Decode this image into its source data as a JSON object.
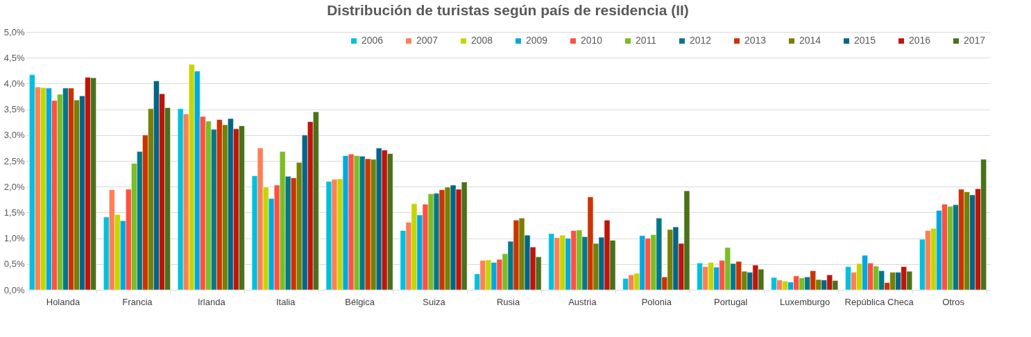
{
  "chart_data": {
    "type": "bar",
    "title": "Distribución de turistas según país de residencia (II)",
    "categories": [
      "Holanda",
      "Francia",
      "Irlanda",
      "Italia",
      "Bélgica",
      "Suiza",
      "Rusia",
      "Austria",
      "Polonia",
      "Portugal",
      "Luxemburgo",
      "República Checa",
      "Otros"
    ],
    "series": [
      {
        "name": "2006",
        "color": "#00c0de",
        "values": [
          4.17,
          1.41,
          3.51,
          2.21,
          2.1,
          1.15,
          0.31,
          1.09,
          0.22,
          0.52,
          0.24,
          0.45,
          0.98
        ]
      },
      {
        "name": "2007",
        "color": "#fe7f56",
        "values": [
          3.93,
          1.94,
          3.41,
          2.75,
          2.14,
          1.31,
          0.57,
          1.01,
          0.29,
          0.45,
          0.19,
          0.34,
          1.15
        ]
      },
      {
        "name": "2008",
        "color": "#c3d600",
        "values": [
          3.92,
          1.46,
          4.37,
          1.99,
          2.15,
          1.67,
          0.58,
          1.06,
          0.32,
          0.53,
          0.17,
          0.51,
          1.19
        ]
      },
      {
        "name": "2009",
        "color": "#00a8e0",
        "values": [
          3.91,
          1.34,
          4.24,
          1.77,
          2.6,
          1.45,
          0.53,
          1.0,
          1.05,
          0.44,
          0.15,
          0.67,
          1.54
        ]
      },
      {
        "name": "2010",
        "color": "#ff5042",
        "values": [
          3.67,
          1.95,
          3.36,
          2.03,
          2.63,
          1.66,
          0.59,
          1.15,
          1.0,
          0.57,
          0.27,
          0.52,
          1.66
        ]
      },
      {
        "name": "2011",
        "color": "#7bbd23",
        "values": [
          3.79,
          2.45,
          3.27,
          2.68,
          2.6,
          1.86,
          0.7,
          1.16,
          1.07,
          0.82,
          0.23,
          0.46,
          1.62
        ]
      },
      {
        "name": "2012",
        "color": "#00788a",
        "values": [
          3.91,
          2.68,
          3.11,
          2.2,
          2.59,
          1.87,
          0.94,
          1.03,
          1.39,
          0.51,
          0.25,
          0.37,
          1.65
        ]
      },
      {
        "name": "2013",
        "color": "#cc3300",
        "values": [
          3.91,
          3.0,
          3.3,
          2.17,
          2.54,
          1.94,
          1.35,
          1.8,
          0.25,
          0.55,
          0.37,
          0.14,
          1.95
        ]
      },
      {
        "name": "2014",
        "color": "#778000",
        "values": [
          3.68,
          3.51,
          3.2,
          2.47,
          2.53,
          1.99,
          1.39,
          0.9,
          1.17,
          0.36,
          0.2,
          0.34,
          1.9
        ]
      },
      {
        "name": "2015",
        "color": "#006688",
        "values": [
          3.76,
          4.05,
          3.32,
          3.0,
          2.75,
          2.03,
          1.06,
          1.02,
          1.22,
          0.34,
          0.19,
          0.34,
          1.84
        ]
      },
      {
        "name": "2016",
        "color": "#c0140a",
        "values": [
          4.12,
          3.8,
          3.12,
          3.26,
          2.71,
          1.95,
          0.83,
          1.35,
          0.9,
          0.48,
          0.29,
          0.45,
          1.96
        ]
      },
      {
        "name": "2017",
        "color": "#4a7119",
        "values": [
          4.11,
          3.53,
          3.18,
          3.45,
          2.64,
          2.09,
          0.64,
          0.96,
          1.92,
          0.4,
          0.18,
          0.36,
          2.53
        ]
      }
    ],
    "ylim": [
      0,
      5
    ],
    "yticks": [
      {
        "value": 0,
        "label": "0,0%"
      },
      {
        "value": 0.5,
        "label": "0,5%"
      },
      {
        "value": 1,
        "label": "1,0%"
      },
      {
        "value": 1.5,
        "label": "1,5%"
      },
      {
        "value": 2,
        "label": "2,0%"
      },
      {
        "value": 2.5,
        "label": "2,5%"
      },
      {
        "value": 3,
        "label": "3,0%"
      },
      {
        "value": 3.5,
        "label": "3,5%"
      },
      {
        "value": 4,
        "label": "4,0%"
      },
      {
        "value": 4.5,
        "label": "4,5%"
      },
      {
        "value": 5,
        "label": "5,0%"
      }
    ],
    "grid": "y",
    "legend": "top right"
  }
}
